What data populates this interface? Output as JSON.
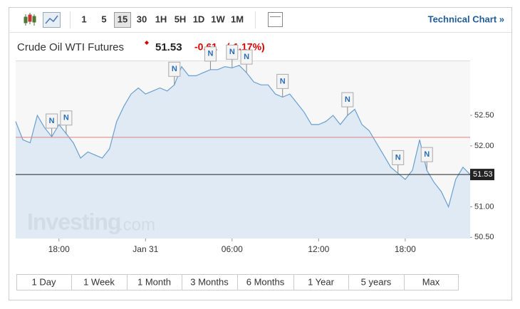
{
  "toolbar": {
    "intervals": [
      "1",
      "5",
      "15",
      "30",
      "1H",
      "5H",
      "1D",
      "1W",
      "1M"
    ],
    "selected": 2,
    "link": "Technical Chart »"
  },
  "header": {
    "title": "Crude Oil WTI Futures",
    "change": "-0.61",
    "change_pct": "(-1.17%)"
  },
  "ranges": [
    "1 Day",
    "1 Week",
    "1 Month",
    "3 Months",
    "6 Months",
    "1 Year",
    "5 years",
    "Max"
  ],
  "chart_data": {
    "type": "area",
    "categories": [
      null,
      null,
      null,
      null,
      null,
      null,
      "18:00",
      null,
      null,
      null,
      null,
      null,
      null,
      null,
      null,
      null,
      null,
      null,
      "Jan 31",
      null,
      null,
      null,
      null,
      null,
      null,
      null,
      null,
      null,
      null,
      null,
      "06:00",
      null,
      null,
      null,
      null,
      null,
      null,
      null,
      null,
      null,
      null,
      null,
      "12:00",
      null,
      null,
      null,
      null,
      null,
      null,
      null,
      null,
      null,
      null,
      null,
      "18:00",
      null,
      null,
      null,
      null,
      null,
      null,
      null,
      null,
      null
    ],
    "values": [
      52.4,
      52.1,
      52.05,
      52.5,
      52.3,
      52.15,
      52.35,
      52.2,
      52.05,
      51.8,
      51.9,
      51.85,
      51.8,
      51.95,
      52.4,
      52.65,
      52.85,
      52.95,
      52.85,
      52.9,
      52.95,
      52.9,
      53.0,
      53.3,
      53.15,
      53.15,
      53.2,
      53.25,
      53.25,
      53.3,
      53.28,
      53.32,
      53.2,
      53.05,
      53.0,
      53.0,
      52.85,
      52.8,
      52.85,
      52.7,
      52.55,
      52.35,
      52.35,
      52.4,
      52.5,
      52.35,
      52.5,
      52.6,
      52.35,
      52.25,
      52.05,
      51.85,
      51.65,
      51.55,
      51.45,
      51.6,
      52.1,
      51.6,
      51.4,
      51.25,
      51.0,
      51.45,
      51.65,
      51.53
    ],
    "color": "#6a9fd0",
    "last_price": 51.53,
    "prev_close": 52.14,
    "ylim": [
      50.48,
      53.4
    ],
    "yticks": [
      {
        "value": 50.5,
        "label": "50.50"
      },
      {
        "value": 51,
        "label": "51.00"
      },
      {
        "value": 52,
        "label": "52.00"
      },
      {
        "value": 52.5,
        "label": "52.50"
      }
    ],
    "news_flags": [
      {
        "text": "N",
        "index": 5
      },
      {
        "text": "N",
        "index": 7
      },
      {
        "text": "N",
        "index": 22
      },
      {
        "text": "N",
        "index": 27
      },
      {
        "text": "N",
        "index": 30
      },
      {
        "text": "N",
        "index": 32
      },
      {
        "text": "N",
        "index": 37
      },
      {
        "text": "N",
        "index": 46
      },
      {
        "text": "N",
        "index": 53
      },
      {
        "text": "N",
        "index": 57
      }
    ],
    "watermark": "Investing",
    "watermark_suffix": ".com"
  }
}
